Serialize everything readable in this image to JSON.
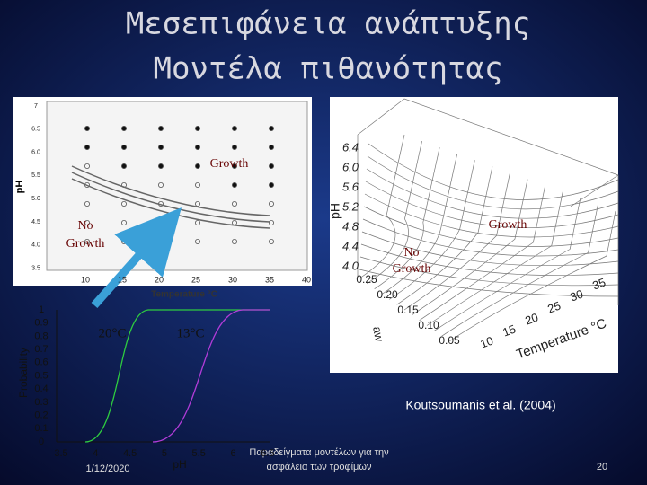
{
  "title": [
    "Μεσεπιφάνεια ανάπτυξης",
    "Μοντέλα πιθανότητας"
  ],
  "left_plot": {
    "y_label": "pH",
    "x_label": "Temperature °C",
    "y_ticks": [
      "7",
      "6.5",
      "6.0",
      "5.5",
      "5.0",
      "4.5",
      "4.0",
      "3.5"
    ],
    "x_ticks": [
      "10",
      "15",
      "20",
      "25",
      "30",
      "35",
      "40"
    ],
    "growth": "Growth",
    "no_growth": [
      "No",
      "Growth"
    ]
  },
  "surface_plot": {
    "y_label": "pH",
    "z_ticks": [
      "6.4",
      "6.0",
      "5.6",
      "5.2",
      "4.8",
      "4.4",
      "4.0"
    ],
    "aw_label": "aw",
    "aw_ticks": [
      "0.25",
      "0.20",
      "0.15",
      "0.10",
      "0.05"
    ],
    "x_label": "Temperature °C",
    "x_ticks": [
      "10",
      "15",
      "20",
      "25",
      "30",
      "35"
    ],
    "growth": "Growth",
    "no_growth": [
      "No",
      "Growth"
    ]
  },
  "probability_plot": {
    "y_label": "Probability",
    "x_label": "pH",
    "y_ticks": [
      "1",
      "0.9",
      "0.8",
      "0.7",
      "0.6",
      "0.5",
      "0.4",
      "0.3",
      "0.2",
      "0.1",
      "0"
    ],
    "x_ticks": [
      "3.5",
      "4",
      "4.5",
      "5",
      "5.5",
      "6",
      "6.5"
    ],
    "curves": [
      "20°C",
      "13°C"
    ]
  },
  "citation": "Koutsoumanis et al. (2004)",
  "footer": {
    "date": "1/12/2020",
    "center": [
      "Παραδείγματα μοντέλων για την",
      "ασφάλεια των τροφίμων"
    ],
    "page": "20"
  }
}
